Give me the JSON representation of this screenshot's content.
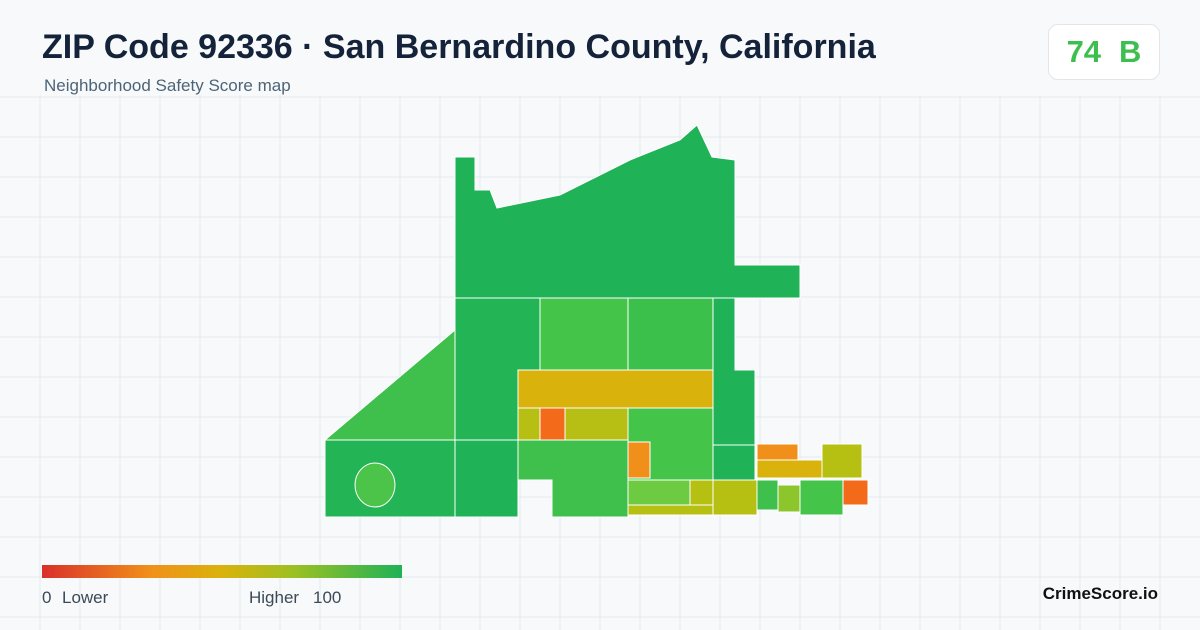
{
  "header": {
    "title": "ZIP Code 92336 · San Bernardino County, California",
    "subtitle": "Neighborhood Safety Score map"
  },
  "score": {
    "value": 74,
    "grade": "B"
  },
  "legend": {
    "min": 0,
    "min_label": "Lower",
    "max_label": "Higher",
    "max": 100
  },
  "brand": "CrimeScore.io"
}
